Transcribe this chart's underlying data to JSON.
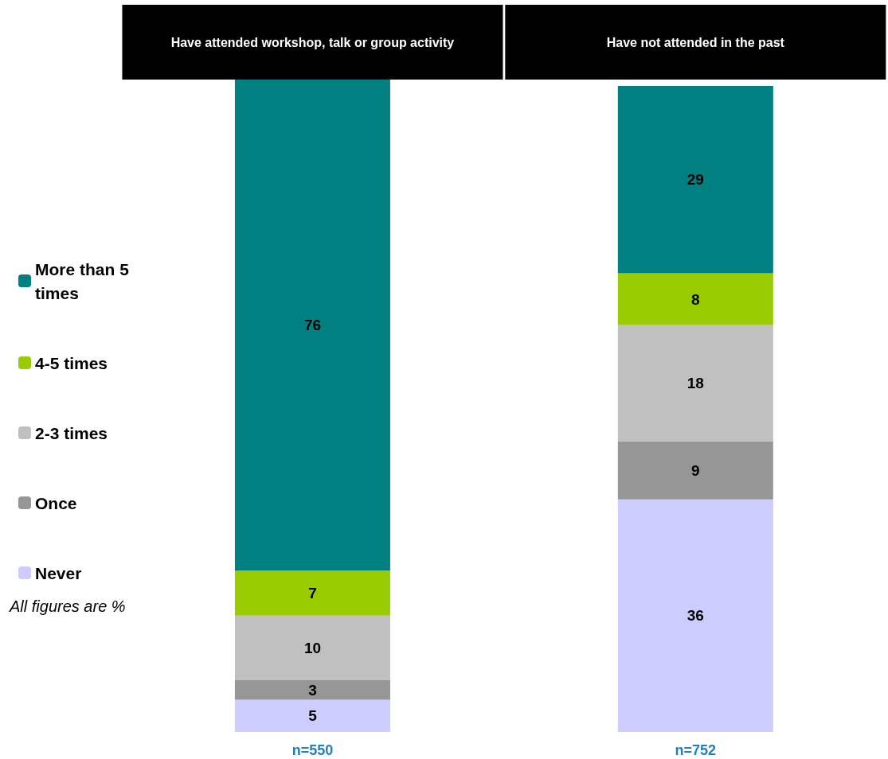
{
  "chart_data": {
    "type": "bar",
    "stacked": true,
    "data_labels": true,
    "legend": "left",
    "categories": [
      "Have attended workshop, talk or group activity",
      "Have not attended in the past"
    ],
    "series": [
      {
        "name": "Never",
        "color": "#ccccff",
        "values": [
          5,
          36
        ]
      },
      {
        "name": "Once",
        "color": "#969696",
        "values": [
          3,
          9
        ]
      },
      {
        "name": "2-3 times",
        "color": "#c0c0c0",
        "values": [
          10,
          18
        ]
      },
      {
        "name": "4-5 times",
        "color": "#99cc00",
        "values": [
          7,
          8
        ]
      },
      {
        "name": "More than 5 times",
        "color": "#008080",
        "values": [
          76,
          29
        ]
      }
    ],
    "annotations": [
      "n=550",
      "n=752",
      "All figures are %"
    ]
  }
}
